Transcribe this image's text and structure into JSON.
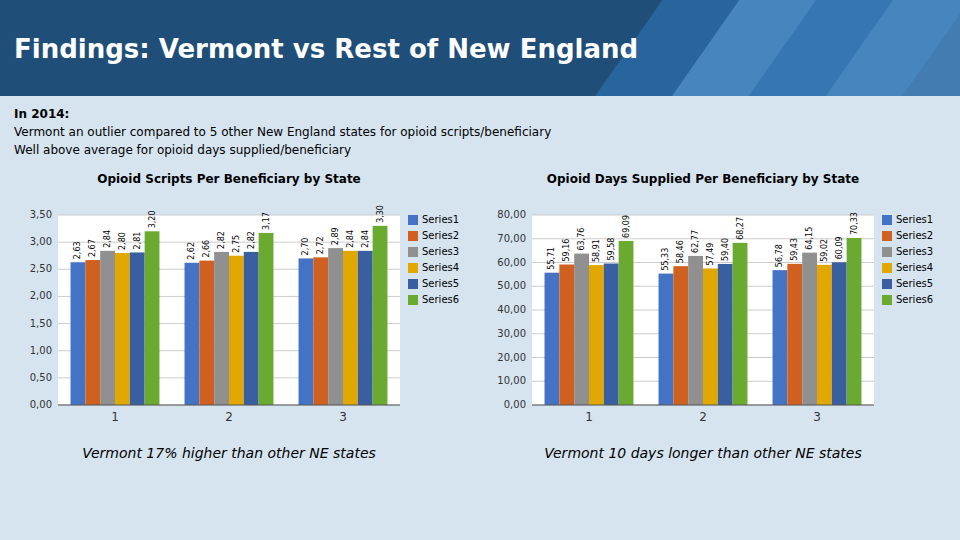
{
  "title": "Findings: Vermont vs Rest of New England",
  "subtitle": [
    "In 2014:",
    "Vermont an outlier compared to 5 other New England states for opioid scripts/beneficiary",
    "Well above average for opioid days supplied/beneficiary"
  ],
  "chart_data": [
    {
      "type": "bar",
      "title": "Opioid Scripts Per Beneficiary by State",
      "categories": [
        "1",
        "2",
        "3"
      ],
      "series": [
        {
          "name": "Series1",
          "color": "#4472C4",
          "values": [
            2.63,
            2.62,
            2.7
          ],
          "value_labels": [
            "2,63",
            "2,62",
            "2,70"
          ]
        },
        {
          "name": "Series2",
          "color": "#D06020",
          "values": [
            2.67,
            2.66,
            2.72
          ],
          "value_labels": [
            "2,67",
            "2,66",
            "2,72"
          ]
        },
        {
          "name": "Series3",
          "color": "#909090",
          "values": [
            2.84,
            2.82,
            2.89
          ],
          "value_labels": [
            "2,84",
            "2,82",
            "2,89"
          ]
        },
        {
          "name": "Series4",
          "color": "#E0A800",
          "values": [
            2.8,
            2.75,
            2.84
          ],
          "value_labels": [
            "2,80",
            "2,75",
            "2,84"
          ]
        },
        {
          "name": "Series5",
          "color": "#3A5FA0",
          "values": [
            2.81,
            2.82,
            2.84
          ],
          "value_labels": [
            "2,81",
            "2,82",
            "2,84"
          ]
        },
        {
          "name": "Series6",
          "color": "#6AAA30",
          "values": [
            3.2,
            3.17,
            3.3
          ],
          "value_labels": [
            "3,20",
            "3,17",
            "3,30"
          ]
        }
      ],
      "ylim": [
        0,
        3.5
      ],
      "yticks": [
        {
          "value": 0,
          "label": "0,00"
        },
        {
          "value": 0.5,
          "label": "0,50"
        },
        {
          "value": 1,
          "label": "1,00"
        },
        {
          "value": 1.5,
          "label": "1,50"
        },
        {
          "value": 2,
          "label": "2,00"
        },
        {
          "value": 2.5,
          "label": "2,50"
        },
        {
          "value": 3,
          "label": "3,00"
        },
        {
          "value": 3.5,
          "label": "3,50"
        }
      ],
      "grid": true,
      "legend": "right",
      "data_labels": true,
      "annotations": [
        "Vermont 17% higher than other NE states"
      ]
    },
    {
      "type": "bar",
      "title": "Opioid Days Supplied Per Beneficiary by State",
      "categories": [
        "1",
        "2",
        "3"
      ],
      "series": [
        {
          "name": "Series1",
          "color": "#4472C4",
          "values": [
            55.71,
            55.33,
            56.78
          ],
          "value_labels": [
            "55,71",
            "55,33",
            "56,78"
          ]
        },
        {
          "name": "Series2",
          "color": "#D06020",
          "values": [
            59.16,
            58.46,
            59.43
          ],
          "value_labels": [
            "59,16",
            "58,46",
            "59,43"
          ]
        },
        {
          "name": "Series3",
          "color": "#909090",
          "values": [
            63.76,
            62.77,
            64.15
          ],
          "value_labels": [
            "63,76",
            "62,77",
            "64,15"
          ]
        },
        {
          "name": "Series4",
          "color": "#E0A800",
          "values": [
            58.91,
            57.49,
            59.02
          ],
          "value_labels": [
            "58,91",
            "57,49",
            "59,02"
          ]
        },
        {
          "name": "Series5",
          "color": "#3A5FA0",
          "values": [
            59.58,
            59.4,
            60.09
          ],
          "value_labels": [
            "59,58",
            "59,40",
            "60,09"
          ]
        },
        {
          "name": "Series6",
          "color": "#6AAA30",
          "values": [
            69.09,
            68.27,
            70.33
          ],
          "value_labels": [
            "69,09",
            "68,27",
            "70,33"
          ]
        }
      ],
      "ylim": [
        0,
        80
      ],
      "yticks": [
        {
          "value": 0,
          "label": "0,00"
        },
        {
          "value": 10,
          "label": "10,00"
        },
        {
          "value": 20,
          "label": "20,00"
        },
        {
          "value": 30,
          "label": "30,00"
        },
        {
          "value": 40,
          "label": "40,00"
        },
        {
          "value": 50,
          "label": "50,00"
        },
        {
          "value": 60,
          "label": "60,00"
        },
        {
          "value": 70,
          "label": "70,00"
        },
        {
          "value": 80,
          "label": "80,00"
        }
      ],
      "grid": true,
      "legend": "right",
      "data_labels": true,
      "annotations": [
        "Vermont 10 days longer than other NE states"
      ]
    }
  ]
}
